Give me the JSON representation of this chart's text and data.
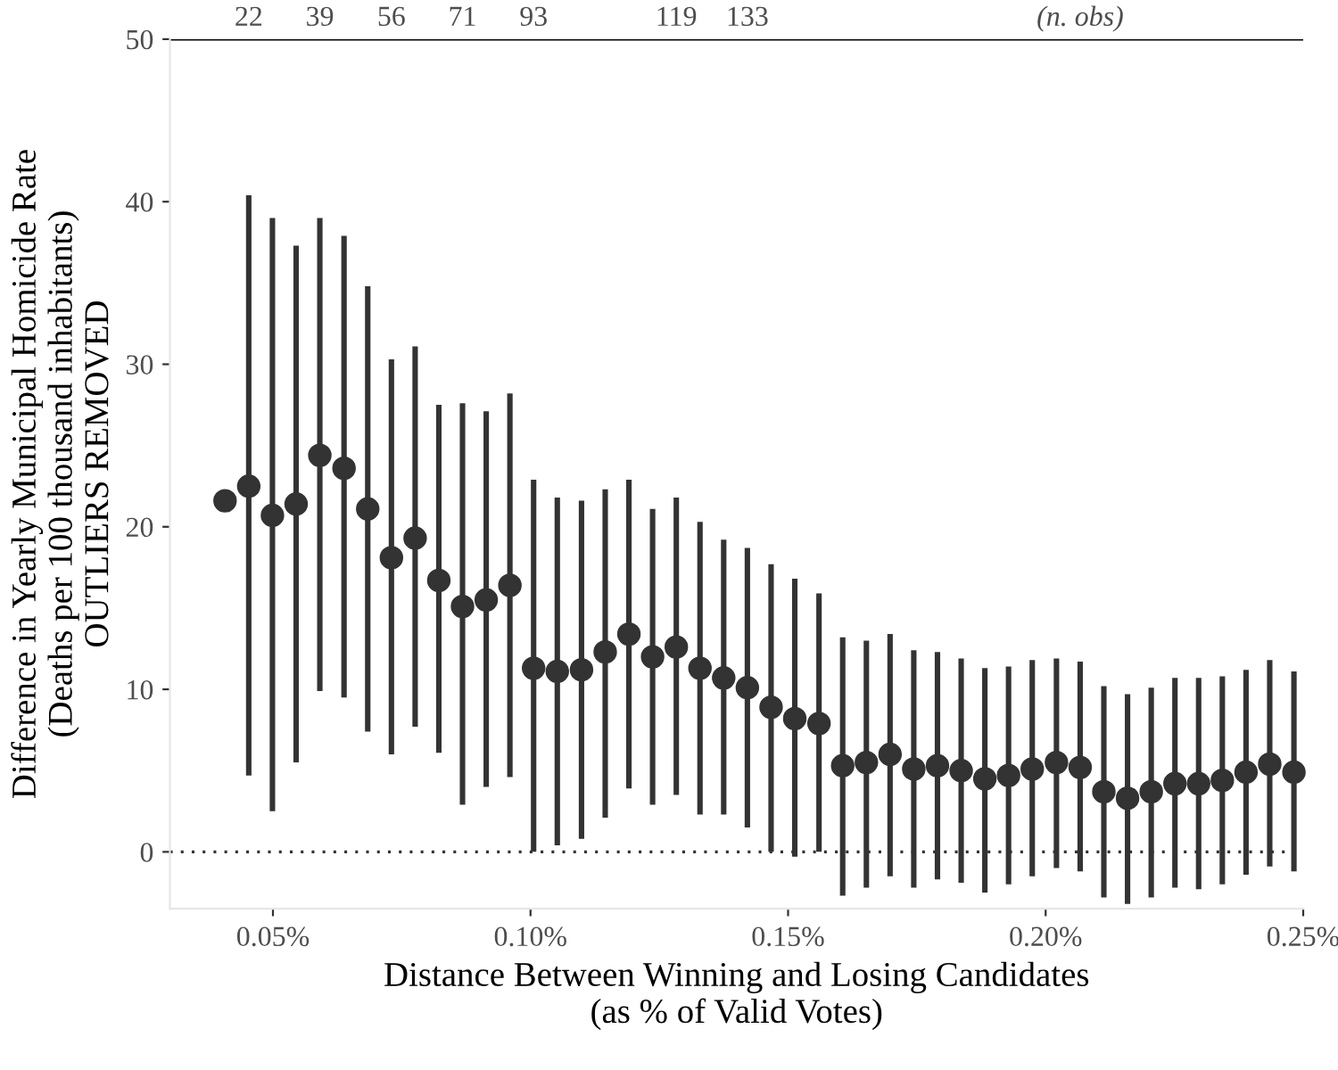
{
  "chart_data": {
    "type": "scatter",
    "xlabel": "Distance Between Winning and Losing Candidates\n(as % of Valid Votes)",
    "ylabel": "Difference in Yearly Municipal Homicide Rate\n(Deaths per 100 thousand inhabitants)\nOUTLIERS REMOVED",
    "x": [
      0.0407,
      0.0453,
      0.0499,
      0.0545,
      0.0591,
      0.0638,
      0.0684,
      0.073,
      0.0776,
      0.0822,
      0.0868,
      0.0914,
      0.096,
      0.1006,
      0.1052,
      0.1099,
      0.1145,
      0.1191,
      0.1237,
      0.1283,
      0.1329,
      0.1375,
      0.1421,
      0.1467,
      0.1513,
      0.156,
      0.1606,
      0.1652,
      0.1698,
      0.1744,
      0.179,
      0.1836,
      0.1882,
      0.1928,
      0.1974,
      0.2021,
      0.2067,
      0.2113,
      0.2159,
      0.2205,
      0.2251,
      0.2297,
      0.2343,
      0.2389,
      0.2435,
      0.2482
    ],
    "series": [
      {
        "color": "#333333",
        "values": [
          21.6,
          22.5,
          20.7,
          21.4,
          24.4,
          23.6,
          21.1,
          18.1,
          19.3,
          16.7,
          15.1,
          15.5,
          16.4,
          11.3,
          11.1,
          11.2,
          12.3,
          13.4,
          12.0,
          12.6,
          11.3,
          10.7,
          10.1,
          8.9,
          8.2,
          7.9,
          5.3,
          5.5,
          6.0,
          5.1,
          5.3,
          5.0,
          4.5,
          4.7,
          5.1,
          5.5,
          5.2,
          3.7,
          3.3,
          3.7,
          4.2,
          4.2,
          4.4,
          4.9,
          5.4,
          4.9
        ],
        "errors": [
          null,
          [
            4.7,
            40.4
          ],
          [
            2.5,
            39.0
          ],
          [
            5.5,
            37.3
          ],
          [
            9.9,
            39.0
          ],
          [
            9.5,
            37.9
          ],
          [
            7.4,
            34.8
          ],
          [
            6.0,
            30.3
          ],
          [
            7.7,
            31.1
          ],
          [
            6.1,
            27.5
          ],
          [
            2.9,
            27.6
          ],
          [
            4.0,
            27.1
          ],
          [
            4.6,
            28.2
          ],
          [
            0.0,
            22.9
          ],
          [
            0.4,
            21.8
          ],
          [
            0.8,
            21.6
          ],
          [
            2.1,
            22.3
          ],
          [
            3.9,
            22.9
          ],
          [
            2.9,
            21.1
          ],
          [
            3.5,
            21.8
          ],
          [
            2.3,
            20.3
          ],
          [
            2.3,
            19.2
          ],
          [
            1.5,
            18.7
          ],
          [
            0.0,
            17.7
          ],
          [
            -0.3,
            16.8
          ],
          [
            0.0,
            15.9
          ],
          [
            -2.7,
            13.2
          ],
          [
            -2.2,
            13.0
          ],
          [
            -1.5,
            13.4
          ],
          [
            -2.2,
            12.4
          ],
          [
            -1.7,
            12.3
          ],
          [
            -1.9,
            11.9
          ],
          [
            -2.5,
            11.3
          ],
          [
            -2.0,
            11.4
          ],
          [
            -1.5,
            11.8
          ],
          [
            -1.0,
            11.9
          ],
          [
            -1.2,
            11.7
          ],
          [
            -2.8,
            10.2
          ],
          [
            -3.2,
            9.7
          ],
          [
            -2.8,
            10.1
          ],
          [
            -2.2,
            10.7
          ],
          [
            -2.3,
            10.7
          ],
          [
            -2.0,
            10.8
          ],
          [
            -1.4,
            11.2
          ],
          [
            -0.9,
            11.8
          ],
          [
            -1.2,
            11.1
          ]
        ]
      }
    ],
    "xlim": [
      0.03,
      0.25
    ],
    "ylim": [
      -3.5,
      50
    ],
    "xticks": [
      {
        "value": 0.05,
        "label": "0.05%"
      },
      {
        "value": 0.1,
        "label": "0.10%"
      },
      {
        "value": 0.15,
        "label": "0.15%"
      },
      {
        "value": 0.2,
        "label": "0.20%"
      },
      {
        "value": 0.25,
        "label": "0.25%"
      }
    ],
    "yticks": [
      0,
      10,
      20,
      30,
      40,
      50
    ],
    "ref_lines": [
      {
        "axis": "y",
        "value": 0,
        "color": "#333333",
        "line_style": "dotted"
      },
      {
        "axis": "y",
        "value": 50,
        "color": "#000000",
        "line_style": "solid"
      }
    ],
    "annotations": [
      {
        "text": "22",
        "x": 0.0453,
        "y": 50
      },
      {
        "text": "39",
        "x": 0.0591,
        "y": 50
      },
      {
        "text": "56",
        "x": 0.073,
        "y": 50
      },
      {
        "text": "71",
        "x": 0.0868,
        "y": 50
      },
      {
        "text": "93",
        "x": 0.1006,
        "y": 50
      },
      {
        "text": "119",
        "x": 0.1283,
        "y": 50
      },
      {
        "text": "133",
        "x": 0.1421,
        "y": 50
      },
      {
        "text": "(n. obs)",
        "x": 0.2067,
        "y": 50
      }
    ],
    "marker": "circle",
    "grid": false,
    "legend": false
  }
}
